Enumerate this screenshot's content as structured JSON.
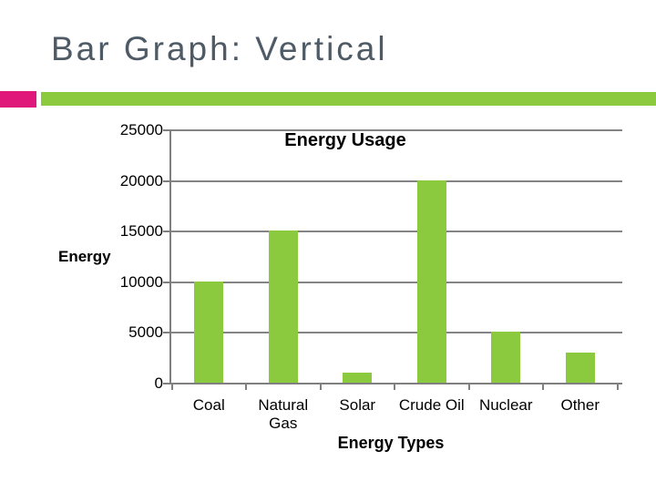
{
  "slide": {
    "title": "Bar Graph: Vertical"
  },
  "colors": {
    "slide_title": "#4e5a65",
    "accent_pink": "#df1879",
    "accent_green": "#8bc93f",
    "bar_green": "#8bc93f",
    "gridline": "#848484",
    "axis": "#7f7f7f",
    "chart_text": "#000000"
  },
  "chart_data": {
    "type": "bar",
    "title": "Energy Usage",
    "categories": [
      "Coal",
      "Natural Gas",
      "Solar",
      "Crude Oil",
      "Nuclear",
      "Other"
    ],
    "category_labels": [
      "Coal",
      "Natural\nGas",
      "Solar",
      "Crude Oil",
      "Nuclear",
      "Other"
    ],
    "values": [
      10000,
      15000,
      1000,
      20000,
      5000,
      3000
    ],
    "xlabel": "Energy Types",
    "ylabel": "Energy",
    "ylim": [
      0,
      25000
    ],
    "yticks": [
      25000,
      20000,
      15000,
      10000,
      5000,
      0
    ],
    "grid": true,
    "legend": "none",
    "bar_color": "#8bc93f"
  }
}
